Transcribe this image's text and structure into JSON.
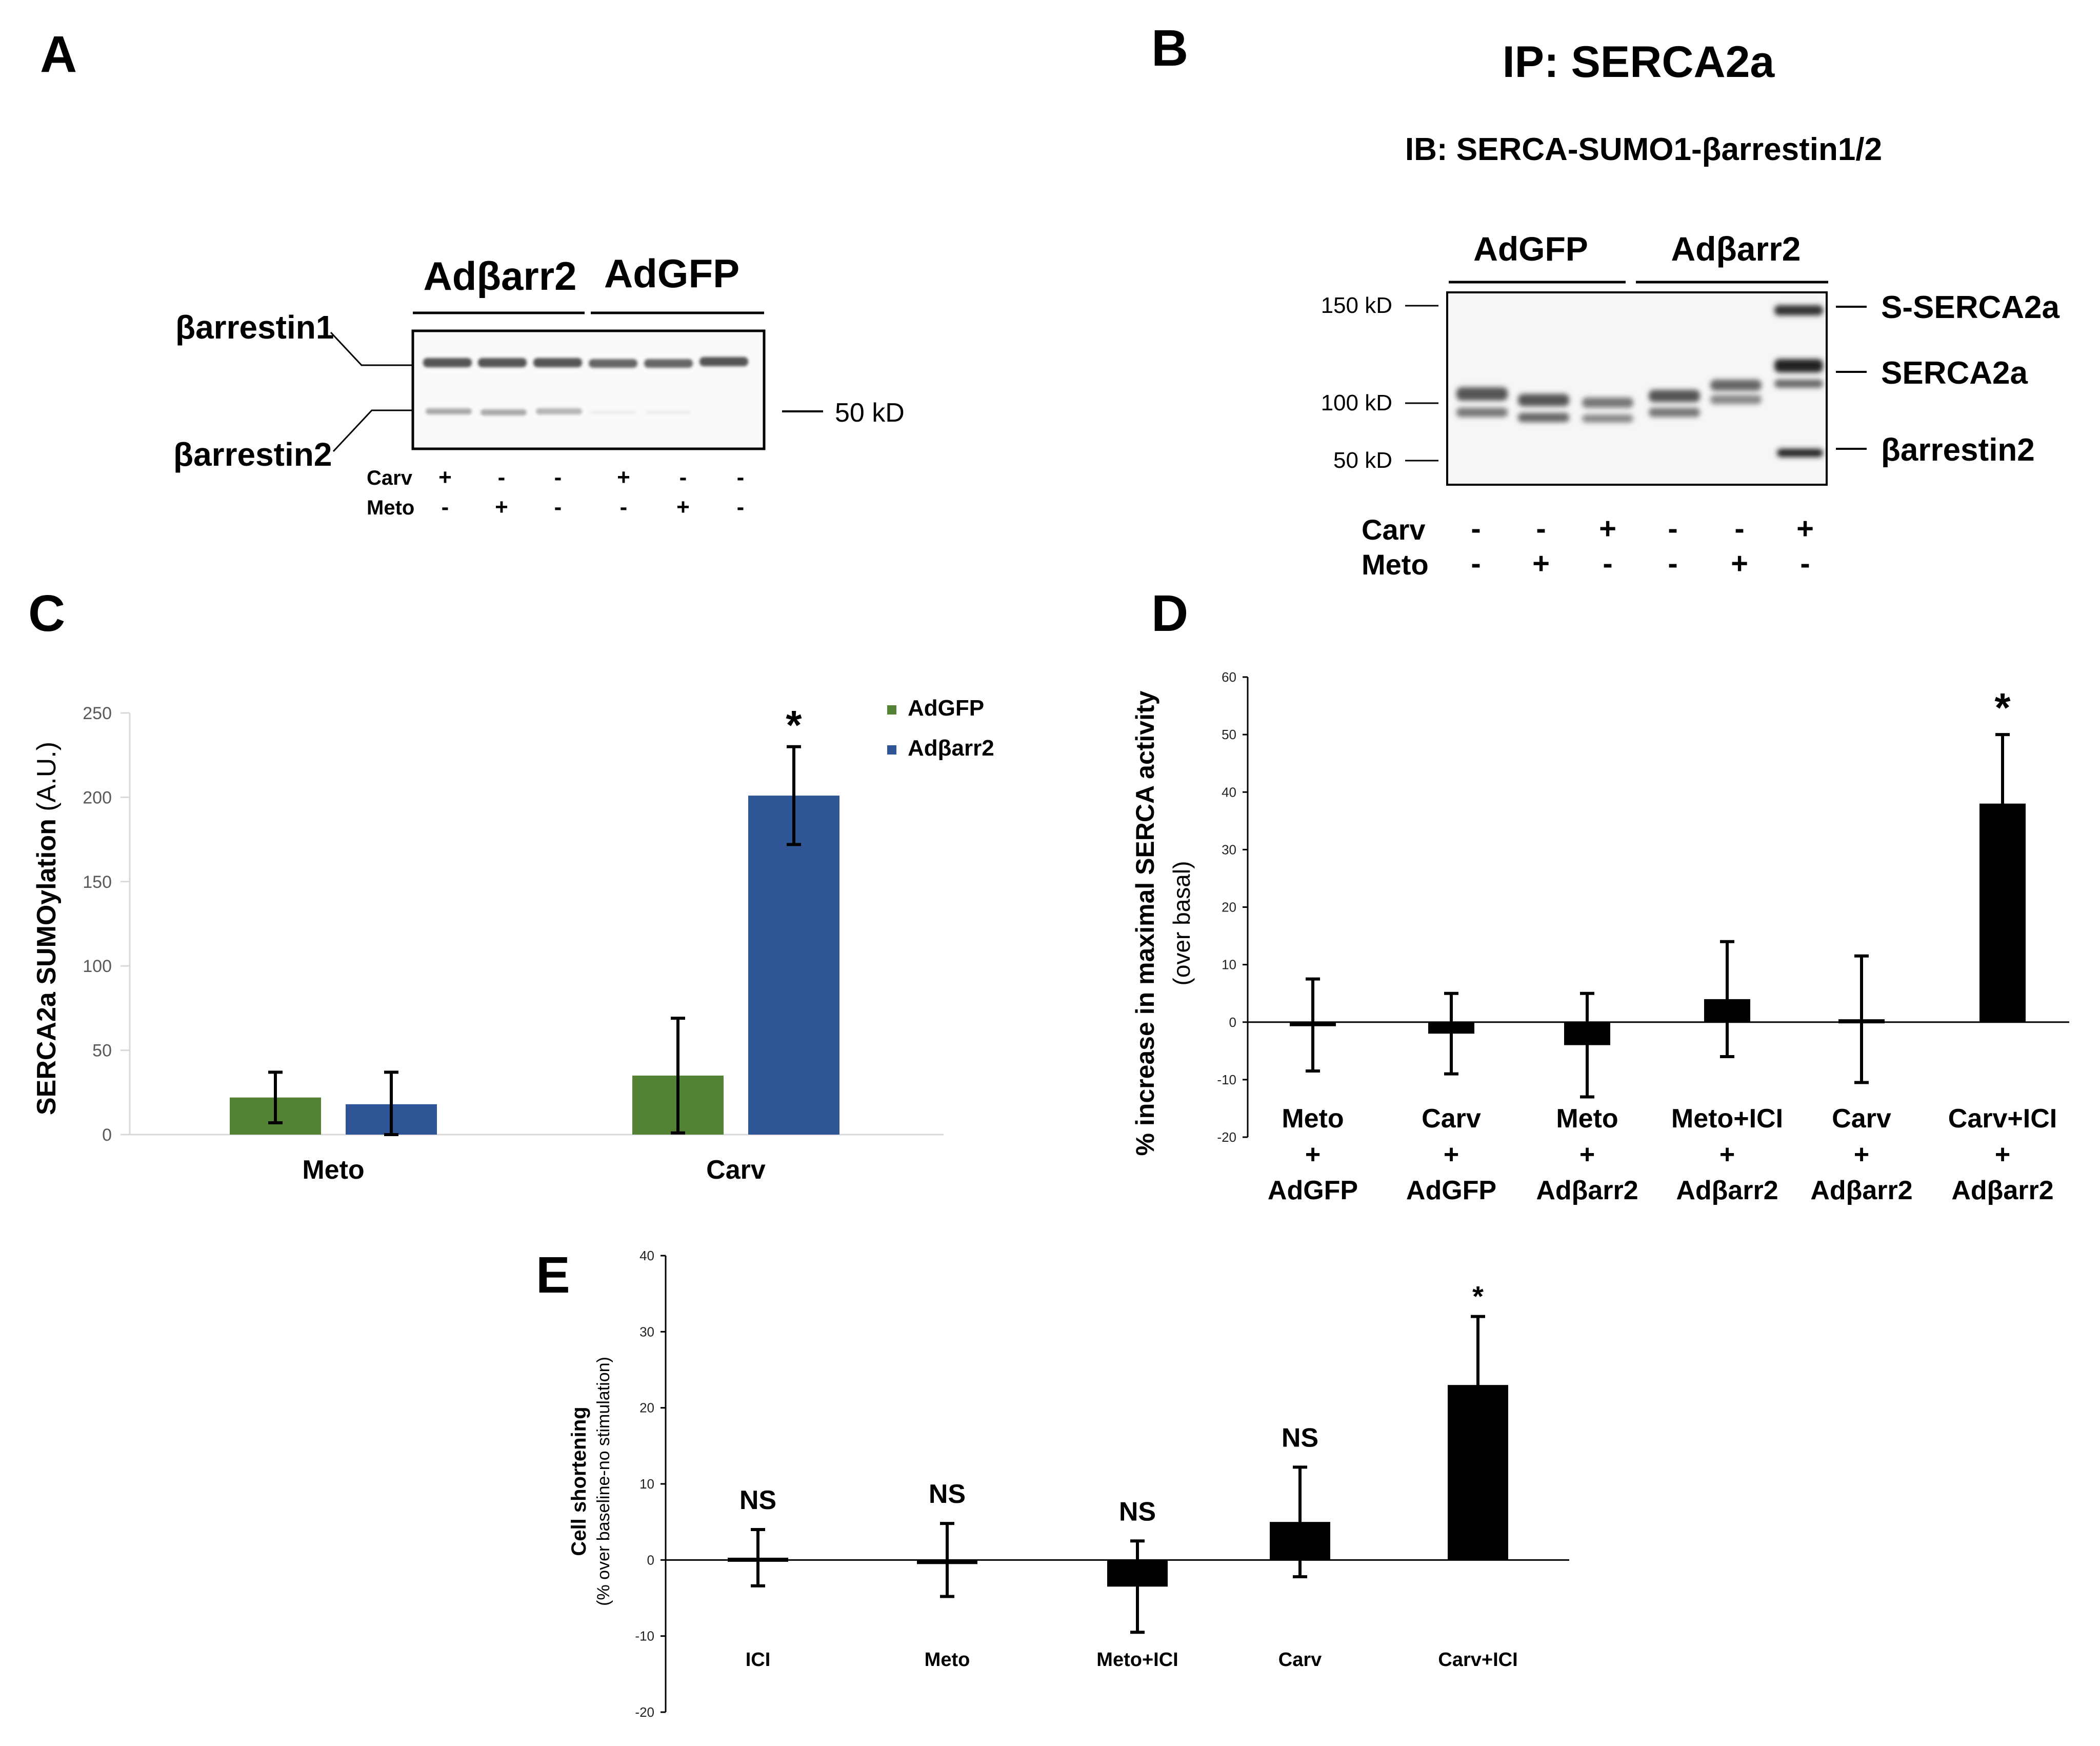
{
  "panels": {
    "a": {
      "letter": "A",
      "group1": "Adβarr2",
      "group2": "AdGFP",
      "band1_label": "βarrestin1",
      "band2_label": "βarrestin2",
      "marker": "50 kD",
      "row1_label": "Carv",
      "row2_label": "Meto",
      "carv_signs": [
        "+",
        "-",
        "-",
        "+",
        "-",
        "-"
      ],
      "meto_signs": [
        "-",
        "+",
        "-",
        "-",
        "+",
        "-"
      ]
    },
    "b": {
      "letter": "B",
      "title": "IP: SERCA2a",
      "subtitle": "IB: SERCA-SUMO1-βarrestin1/2",
      "group1": "AdGFP",
      "group2": "Adβarr2",
      "markers": [
        "150 kD",
        "100 kD",
        "50 kD"
      ],
      "bands": [
        "S-SERCA2a",
        "SERCA2a",
        "βarrestin2"
      ],
      "row1_label": "Carv",
      "row2_label": "Meto",
      "carv_signs": [
        "-",
        "-",
        "+",
        "-",
        "-",
        "+"
      ],
      "meto_signs": [
        "-",
        "+",
        "-",
        "-",
        "+",
        "-"
      ]
    },
    "c": {
      "letter": "C"
    },
    "d": {
      "letter": "D"
    },
    "e": {
      "letter": "E"
    }
  },
  "chart_data": [
    {
      "id": "C",
      "type": "bar",
      "categories": [
        "Meto",
        "Carv"
      ],
      "series": [
        {
          "name": "AdGFP",
          "color": "#548235",
          "values": [
            22,
            35
          ],
          "errors": [
            15,
            34
          ]
        },
        {
          "name": "Adβarr2",
          "color": "#2F5597",
          "values": [
            18,
            201
          ],
          "errors": [
            19,
            29
          ]
        }
      ],
      "ylabel_bold": "SERCA2a SUMOylation",
      "ylabel_rest": " (A.U.)",
      "ylim": [
        0,
        250
      ],
      "yticks": [
        0,
        50,
        100,
        150,
        200,
        250
      ],
      "annotations": [
        {
          "category": "Carv",
          "series": "Adβarr2",
          "text": "*"
        }
      ],
      "legend_position": "top-right"
    },
    {
      "id": "D",
      "type": "bar",
      "categories": [
        [
          "Meto",
          "+",
          "AdGFP"
        ],
        [
          "Carv",
          "+",
          "AdGFP"
        ],
        [
          "Meto",
          "+",
          "Adβarr2"
        ],
        [
          "Meto+ICI",
          "+",
          "Adβarr2"
        ],
        [
          "Carv",
          "+",
          "Adβarr2"
        ],
        [
          "Carv+ICI",
          "+",
          "Adβarr2"
        ]
      ],
      "values": [
        -0.5,
        -2,
        -4,
        4,
        0.5,
        38
      ],
      "errors": [
        8,
        7,
        9,
        10,
        11,
        12
      ],
      "ylabel": "% increase in maximal SERCA activity",
      "ylabel2": "(over basal)",
      "ylim": [
        -20,
        60
      ],
      "yticks": [
        -20,
        -10,
        0,
        10,
        20,
        30,
        40,
        50,
        60
      ],
      "annotations": [
        {
          "index": 5,
          "text": "*"
        }
      ]
    },
    {
      "id": "E",
      "type": "bar",
      "categories": [
        "ICI",
        "Meto",
        "Meto+ICI",
        "Carv",
        "Carv+ICI"
      ],
      "values": [
        0.3,
        0,
        -3.5,
        5,
        23
      ],
      "errors": [
        3.7,
        4.8,
        6,
        7.2,
        9
      ],
      "ylabel": "Cell shortening",
      "ylabel2": "(% over baseline-no stimulation)",
      "ylim": [
        -20,
        40
      ],
      "yticks": [
        -20,
        -10,
        0,
        10,
        20,
        30,
        40
      ],
      "annotations": [
        "NS",
        "NS",
        "NS",
        "NS",
        "*"
      ]
    }
  ]
}
